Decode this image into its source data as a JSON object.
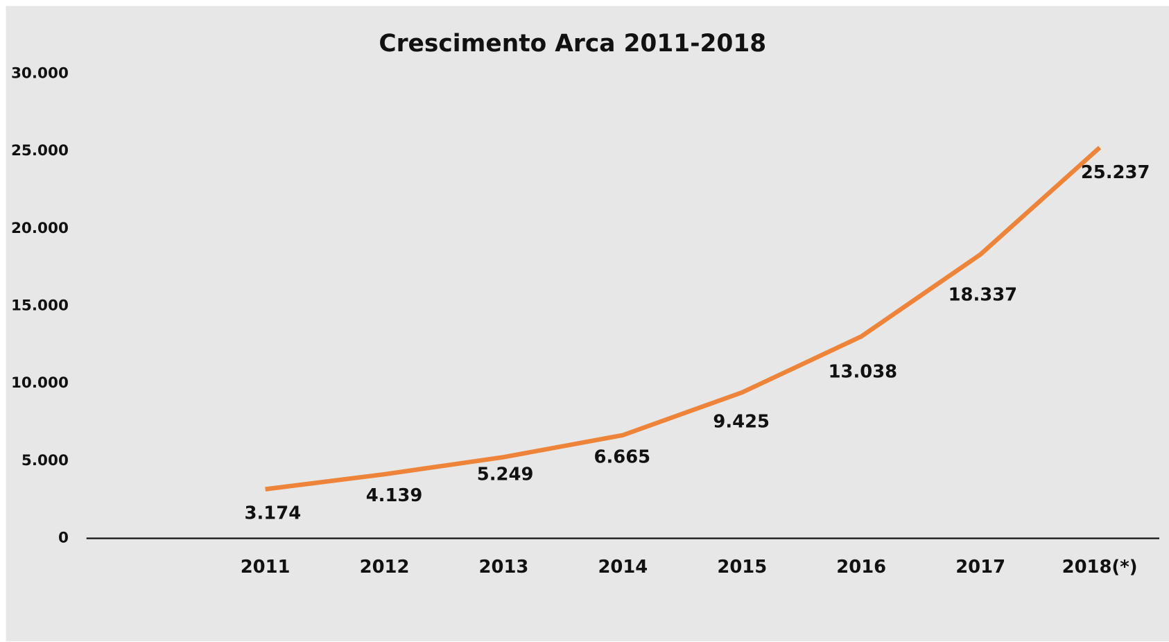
{
  "chart_data": {
    "type": "line",
    "title": "Crescimento Arca 2011-2018",
    "categories": [
      null,
      "2011",
      "2012",
      "2013",
      "2014",
      "2015",
      "2016",
      "2017",
      "2018(*)"
    ],
    "series": [
      {
        "name": "Arca",
        "color": "#ed8439",
        "values": [
          null,
          3174,
          4139,
          5249,
          6665,
          9425,
          13038,
          18337,
          25237
        ],
        "value_labels": [
          null,
          "3.174",
          "4.139",
          "5.249",
          "6.665",
          "9.425",
          "13.038",
          "18.337",
          "25.237"
        ]
      }
    ],
    "ylim": [
      0,
      30000
    ],
    "yticks": [
      0,
      {
        "value": 5000,
        "label": "5.000"
      },
      {
        "value": 10000,
        "label": "10.000"
      },
      {
        "value": 15000,
        "label": "15.000"
      },
      {
        "value": 20000,
        "label": "20.000"
      },
      {
        "value": 25000,
        "label": "25.000"
      },
      {
        "value": 30000,
        "label": "30.000"
      }
    ],
    "grid": false
  }
}
